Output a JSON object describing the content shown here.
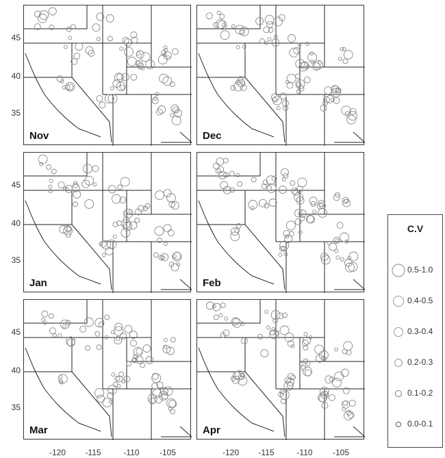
{
  "panels": [
    {
      "month": "Nov"
    },
    {
      "month": "Dec"
    },
    {
      "month": "Jan"
    },
    {
      "month": "Feb"
    },
    {
      "month": "Mar"
    },
    {
      "month": "Apr"
    }
  ],
  "axes": {
    "y_ticks": [
      "45",
      "40",
      "35"
    ],
    "x_ticks": [
      "-120",
      "-115",
      "-110",
      "-105"
    ]
  },
  "legend": {
    "title": "C.V",
    "items": [
      {
        "label": "0.5-1.0"
      },
      {
        "label": "0.4-0.5"
      },
      {
        "label": "0.3-0.4"
      },
      {
        "label": "0.2-0.3"
      },
      {
        "label": "0.1-0.2"
      },
      {
        "label": "0.0-0.1"
      }
    ]
  },
  "colors": {
    "marker": "#888888",
    "border": "#333333"
  }
}
